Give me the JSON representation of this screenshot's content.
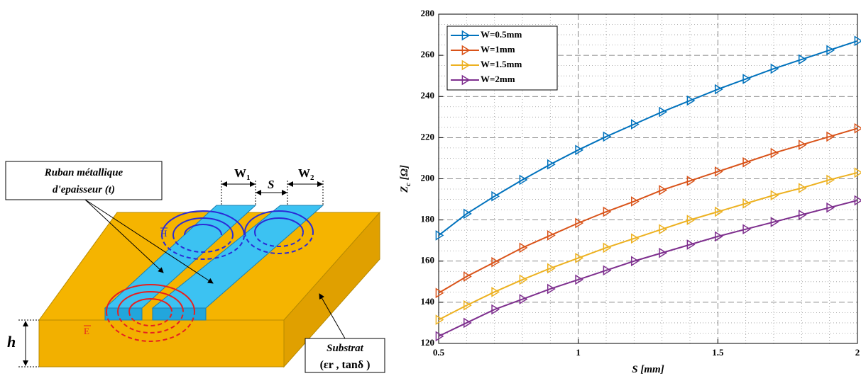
{
  "diagram": {
    "ribbon_label": [
      "Ruban métallique",
      "d'epaisseur (t)"
    ],
    "w1": [
      "W",
      "1"
    ],
    "s": "S",
    "w2": [
      "W",
      "2"
    ],
    "h_field": "H",
    "e_field": "E",
    "h": "h",
    "substrate_label": [
      "Substrat",
      "(εr , tanδ )"
    ]
  },
  "chart_data": {
    "type": "line",
    "xlabel": "S [mm]",
    "ylabel": [
      "Z",
      "c",
      " [Ω]"
    ],
    "x": [
      0.5,
      0.6,
      0.7,
      0.8,
      0.9,
      1.0,
      1.1,
      1.2,
      1.3,
      1.4,
      1.5,
      1.6,
      1.7,
      1.8,
      1.9,
      2.0
    ],
    "series": [
      {
        "name": "W=0.5mm",
        "color": "#0072bd",
        "values": [
          172.5,
          183,
          191.5,
          199.5,
          207,
          214,
          220.5,
          226.5,
          232.5,
          238,
          243.5,
          248.5,
          253.5,
          258,
          262.5,
          267
        ]
      },
      {
        "name": "W=1mm",
        "color": "#d95319",
        "values": [
          144.5,
          152.5,
          159.5,
          166.5,
          172.5,
          178.5,
          184,
          189,
          194.5,
          199,
          203.5,
          208,
          212.5,
          216.5,
          220.5,
          224.5
        ]
      },
      {
        "name": "W=1.5mm",
        "color": "#edb120",
        "values": [
          131.5,
          138.5,
          145,
          151,
          156.5,
          161.5,
          166.5,
          171,
          175.5,
          180,
          184,
          188,
          192,
          195.5,
          199.5,
          203
        ]
      },
      {
        "name": "W=2mm",
        "color": "#7e2f8e",
        "values": [
          123.5,
          130,
          136.5,
          141.5,
          146.5,
          151,
          155.5,
          160,
          164,
          168,
          172,
          175.5,
          179,
          182.5,
          186,
          189.5
        ]
      }
    ],
    "xlim": [
      0.5,
      2
    ],
    "xticks": [
      0.5,
      1,
      1.5,
      2
    ],
    "ylim": [
      120,
      280
    ],
    "yticks": [
      120,
      140,
      160,
      180,
      200,
      220,
      240,
      260,
      280
    ],
    "grid": true,
    "minor_grid": true,
    "legend": "upper left"
  }
}
